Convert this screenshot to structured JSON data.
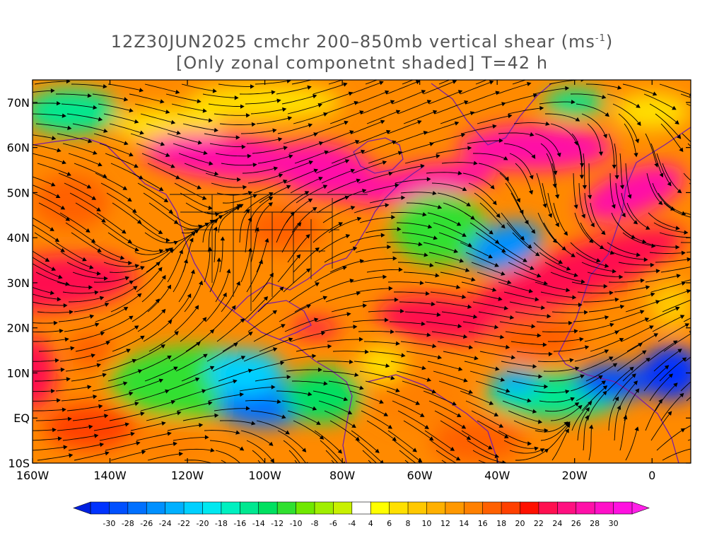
{
  "title": {
    "line1_prefix": "12Z30JUN2025 cmchr 200–850mb vertical shear (ms",
    "line1_sup": "-1",
    "line1_suffix": ")",
    "line2": "[Only zonal componetnt shaded] T=42 h"
  },
  "map": {
    "lon_range": [
      -160,
      10
    ],
    "lat_range": [
      -10,
      75
    ],
    "lat_ticks": [
      {
        "value": 70,
        "label": "70N"
      },
      {
        "value": 60,
        "label": "60N"
      },
      {
        "value": 50,
        "label": "50N"
      },
      {
        "value": 40,
        "label": "40N"
      },
      {
        "value": 30,
        "label": "30N"
      },
      {
        "value": 20,
        "label": "20N"
      },
      {
        "value": 10,
        "label": "10N"
      },
      {
        "value": 0,
        "label": "EQ"
      },
      {
        "value": -10,
        "label": "10S"
      }
    ],
    "lon_ticks": [
      {
        "value": -160,
        "label": "160W"
      },
      {
        "value": -140,
        "label": "140W"
      },
      {
        "value": -120,
        "label": "120W"
      },
      {
        "value": -100,
        "label": "100W"
      },
      {
        "value": -80,
        "label": "80W"
      },
      {
        "value": -60,
        "label": "60W"
      },
      {
        "value": -40,
        "label": "40W"
      },
      {
        "value": -20,
        "label": "20W"
      },
      {
        "value": 0,
        "label": "0"
      }
    ],
    "field": "zonal component of 200-850mb vertical shear",
    "overlay": "vertical shear streamlines",
    "land_outline_color": "#7a1fa2"
  },
  "colorbar": {
    "labels": [
      "-30",
      "-28",
      "-26",
      "-24",
      "-22",
      "-20",
      "-18",
      "-16",
      "-14",
      "-12",
      "-10",
      "-8",
      "-6",
      "-4",
      "4",
      "6",
      "8",
      "10",
      "12",
      "14",
      "16",
      "18",
      "20",
      "22",
      "24",
      "26",
      "28",
      "30"
    ],
    "colors": [
      "#0033ff",
      "#0050ff",
      "#0070ff",
      "#0090ff",
      "#00b0ff",
      "#00d0ff",
      "#00e8f0",
      "#00f0c0",
      "#00e890",
      "#00e060",
      "#30e030",
      "#70e800",
      "#a0ee00",
      "#c8f000",
      "#ffffff",
      "#ffff00",
      "#ffe000",
      "#ffc800",
      "#ffb000",
      "#ff9800",
      "#ff8000",
      "#ff6000",
      "#ff4000",
      "#ff1000",
      "#ff1050",
      "#ff1080",
      "#ff10a8",
      "#ff10c8",
      "#ff10e0"
    ]
  },
  "colors": {
    "title_gray": "#555555",
    "axis_black": "#000000"
  }
}
